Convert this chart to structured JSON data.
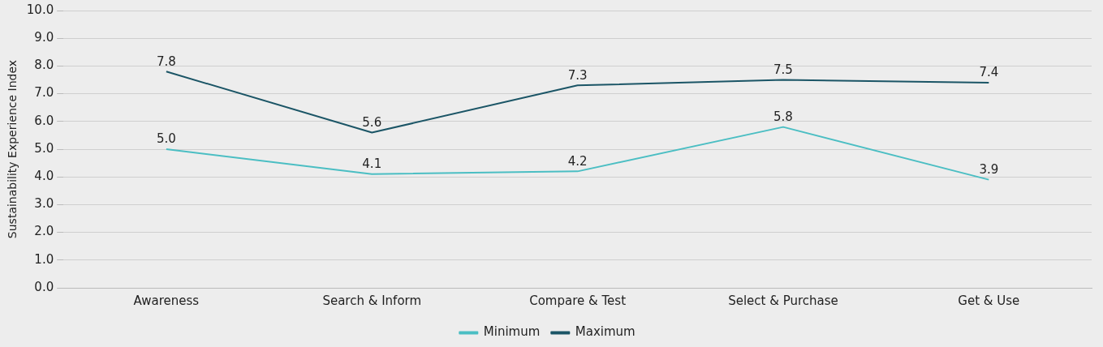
{
  "chart_data": {
    "type": "line",
    "ylabel": "Sustainability Experience Index",
    "categories": [
      "Awareness",
      "Search & Inform",
      "Compare & Test",
      "Select & Purchase",
      "Get & Use"
    ],
    "series": [
      {
        "name": "Minimum",
        "color": "#4bbec3",
        "values": [
          5.0,
          4.1,
          4.2,
          5.8,
          3.9
        ],
        "value_labels": [
          "5.0",
          "4.1",
          "4.2",
          "5.8",
          "3.9"
        ]
      },
      {
        "name": "Maximum",
        "color": "#1b5566",
        "values": [
          7.8,
          5.6,
          7.3,
          7.5,
          7.4
        ],
        "value_labels": [
          "7.8",
          "5.6",
          "7.3",
          "7.5",
          "7.4"
        ]
      }
    ],
    "ylim": [
      0,
      10
    ],
    "yticks": [
      {
        "value": 0,
        "label": "0.0"
      },
      {
        "value": 1,
        "label": "1.0"
      },
      {
        "value": 2,
        "label": "2.0"
      },
      {
        "value": 3,
        "label": "3.0"
      },
      {
        "value": 4,
        "label": "4.0"
      },
      {
        "value": 5,
        "label": "5.0"
      },
      {
        "value": 6,
        "label": "6.0"
      },
      {
        "value": 7,
        "label": "7.0"
      },
      {
        "value": 8,
        "label": "8.0"
      },
      {
        "value": 9,
        "label": "9.0"
      },
      {
        "value": 10,
        "label": "10.0"
      }
    ],
    "grid": "y",
    "legend": "bottom",
    "marker": "none",
    "line_style": "solid"
  }
}
